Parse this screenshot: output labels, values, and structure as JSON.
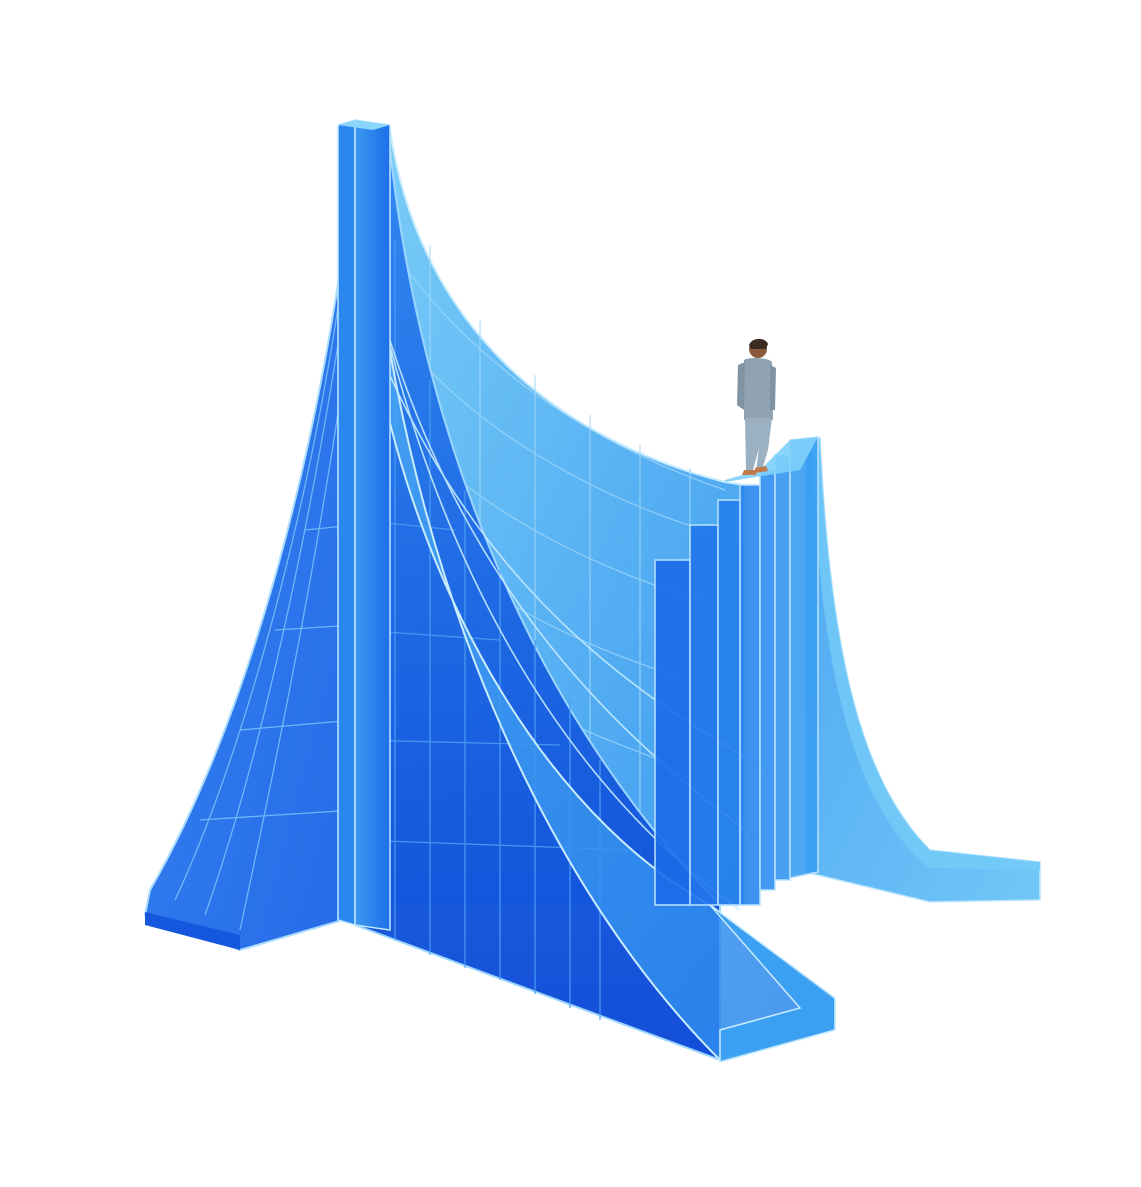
{
  "scene": {
    "subject": "glass-staircase-sculpture",
    "figure": "walking-person",
    "colors": {
      "background": "#ffffff",
      "glass_light": "#5cc0f5",
      "glass_mid": "#2a8ff0",
      "glass_deep": "#0f55dd",
      "glass_darkest": "#0a3fc4",
      "edge_highlight": "#c9ecff",
      "person_shirt": "#8fa3b3",
      "person_trousers": "#9bb0c0",
      "person_skin": "#8a5a3c",
      "person_shoes": "#c07b4a"
    }
  }
}
